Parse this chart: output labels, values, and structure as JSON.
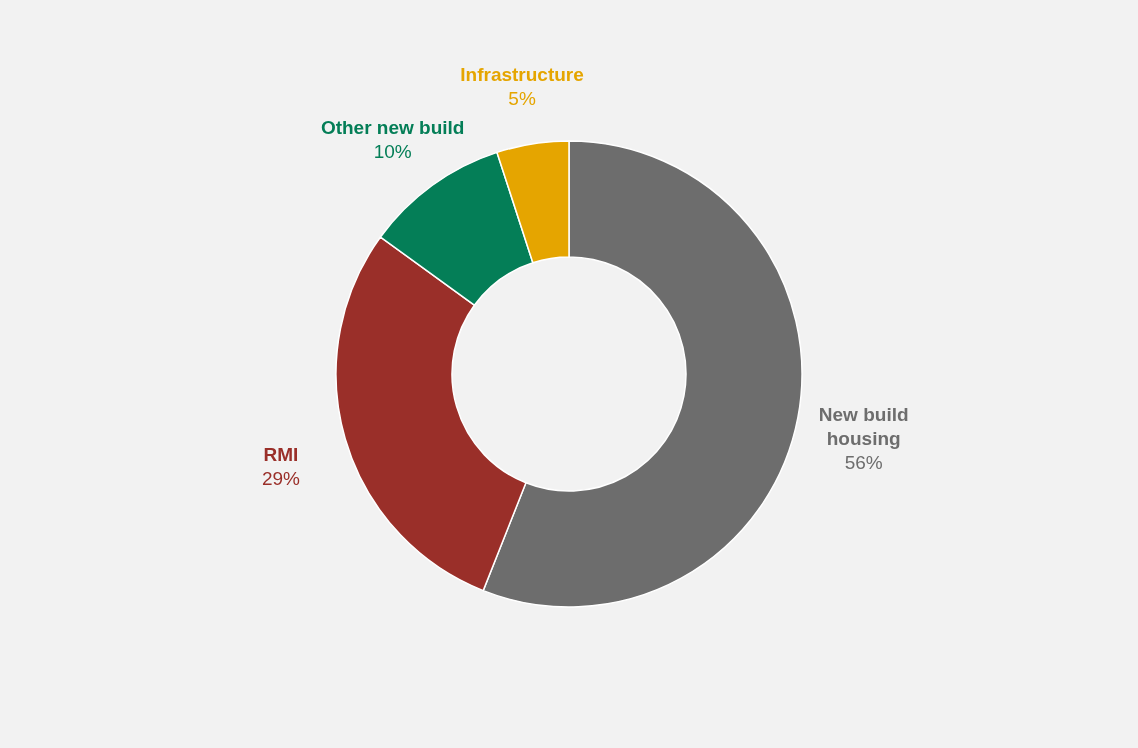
{
  "chart_data": {
    "type": "donut",
    "categories": [
      "New build housing",
      "RMI",
      "Other new build",
      "Infrastructure"
    ],
    "values": [
      56,
      29,
      10,
      5
    ],
    "colors": [
      "#6d6d6d",
      "#9a2f29",
      "#047e57",
      "#e5a500"
    ],
    "value_labels": [
      "56%",
      "29%",
      "10%",
      "5%"
    ],
    "legend": false
  }
}
